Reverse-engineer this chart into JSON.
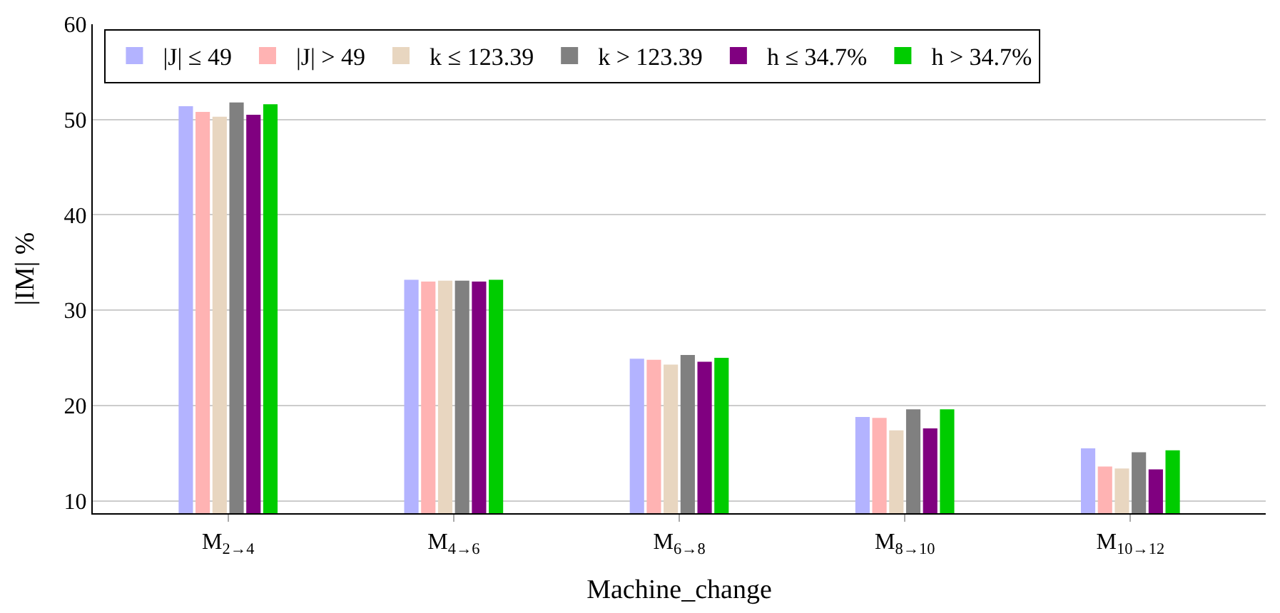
{
  "chart_data": {
    "type": "bar",
    "xlabel": "Machine_change",
    "ylabel": "|IM| %",
    "categories": [
      "M$_{2→4}$",
      "M$_{4→6}$",
      "M$_{6→8}$",
      "M$_{8→10}$",
      "M$_{10→12}$"
    ],
    "series": [
      {
        "name": "|J| ≤ 49",
        "color": "#b3b3ff",
        "values": [
          51.4,
          33.2,
          24.9,
          18.8,
          15.5
        ]
      },
      {
        "name": "|J| > 49",
        "color": "#ffb3b3",
        "values": [
          50.8,
          33.0,
          24.8,
          18.7,
          13.6
        ]
      },
      {
        "name": "k ≤ 123.39",
        "color": "#e8d6c0",
        "values": [
          50.3,
          33.1,
          24.3,
          17.4,
          13.4
        ]
      },
      {
        "name": "k > 123.39",
        "color": "#808080",
        "values": [
          51.8,
          33.1,
          25.3,
          19.6,
          15.1
        ]
      },
      {
        "name": "h ≤ 34.7%",
        "color": "#800080",
        "values": [
          50.5,
          33.0,
          24.6,
          17.6,
          13.3
        ]
      },
      {
        "name": "h > 34.7%",
        "color": "#00cc00",
        "values": [
          51.6,
          33.2,
          25.0,
          19.6,
          15.3
        ]
      }
    ],
    "ylim": [
      8.7,
      60
    ],
    "yticks": [
      10,
      20,
      30,
      40,
      50,
      60
    ],
    "grid": "y",
    "legend": "top left"
  }
}
